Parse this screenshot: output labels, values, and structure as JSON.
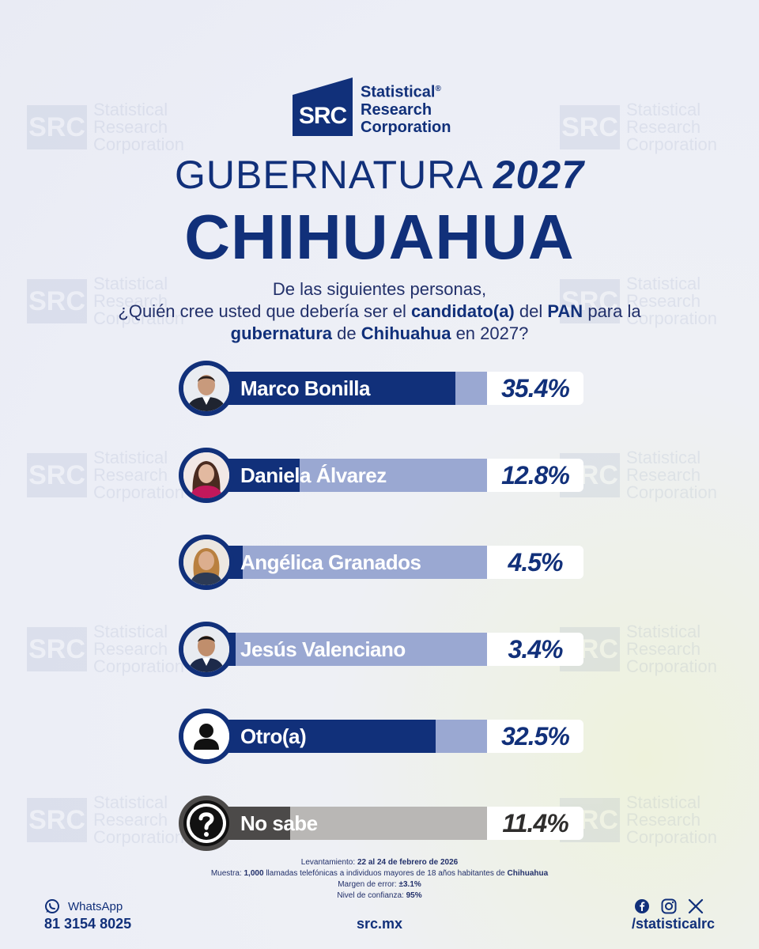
{
  "brand": {
    "logo_mark": "SRC",
    "name_line1": "Statistical",
    "name_line2": "Research",
    "name_line3": "Corporation",
    "registered": "®"
  },
  "title": {
    "prefix": "GUBERNATURA",
    "year": "2027",
    "state": "CHIHUAHUA"
  },
  "question": {
    "line1": "De las siguientes personas,",
    "p1": "¿Quién cree usted que debería ser el",
    "b1": "candidato(a)",
    "p2": "del",
    "b2": "PAN",
    "p3": "para la",
    "b3": "gubernatura",
    "p4": "de",
    "b4": "Chihuahua",
    "p5": "en 2027?"
  },
  "chart_data": {
    "type": "bar",
    "categories": [
      "Marco Bonilla",
      "Daniela Álvarez",
      "Angélica Granados",
      "Jesús Valenciano",
      "Otro(a)",
      "No sabe"
    ],
    "values": [
      35.4,
      12.8,
      4.5,
      3.4,
      32.5,
      11.4
    ],
    "value_labels": [
      "35.4%",
      "12.8%",
      "4.5%",
      "3.4%",
      "32.5%",
      "11.4%"
    ],
    "ylim": [
      0,
      40
    ],
    "orientation": "horizontal",
    "colors": {
      "bar": "#11307a",
      "track": "#9aa8d2",
      "bar_unknown": "#4c4a49",
      "track_unknown": "#b9b7b5"
    },
    "icons": [
      "photo-marco-bonilla",
      "photo-daniela-alvarez",
      "photo-angelica-granados",
      "photo-jesus-valenciano",
      "person-icon",
      "question-mark-icon"
    ]
  },
  "footnote": {
    "l1_label": "Levantamiento:",
    "l1_value": "22 al 24 de febrero de 2026",
    "l2_label": "Muestra:",
    "l2_count": "1,000",
    "l2_text": "llamadas telefónicas a individuos mayores de 18 años habitantes de",
    "l2_place": "Chihuahua",
    "l3_label": "Margen de error:",
    "l3_value": "±3.1%",
    "l4_label": "Nivel de confianza:",
    "l4_value": "95%"
  },
  "contact": {
    "whatsapp_label": "WhatsApp",
    "phone": "81 3154 8025",
    "website": "src.mx",
    "social_handle": "/statisticalrc",
    "social_icons": [
      "facebook-icon",
      "instagram-icon",
      "x-icon"
    ]
  },
  "watermark": {
    "mark": "SRC",
    "line1": "Statistical",
    "line2": "Research",
    "line3": "Corporation"
  }
}
